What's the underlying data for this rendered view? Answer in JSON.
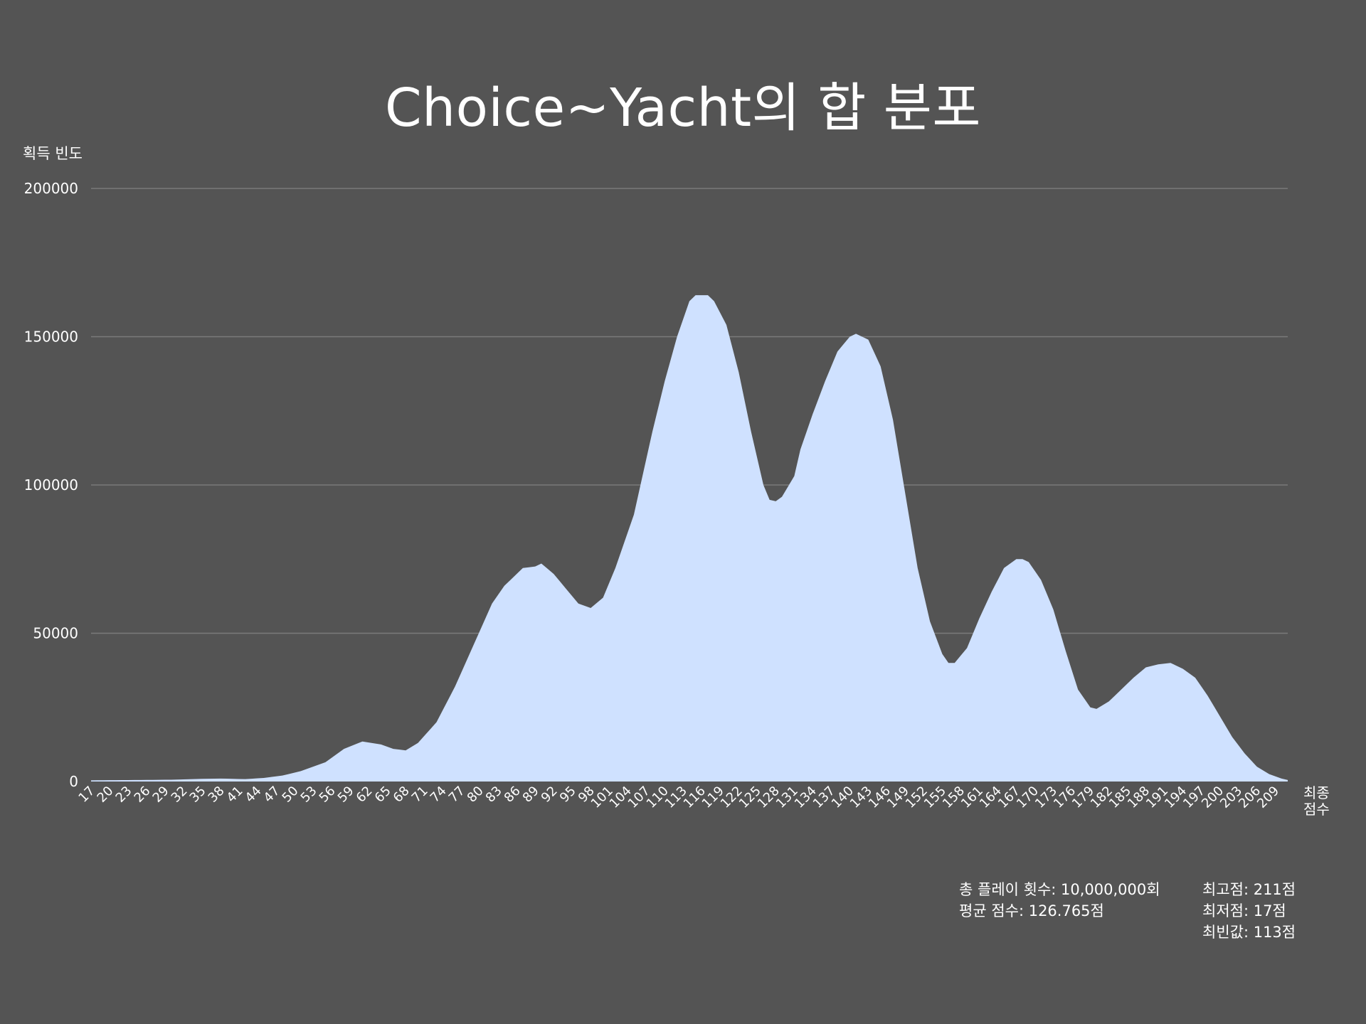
{
  "chart_data": {
    "type": "area",
    "title": "Choice~Yacht의 합 분포",
    "ylabel": "획득 빈도",
    "xlabel": "최종\n점수",
    "ylim": [
      0,
      200000
    ],
    "yticks": [
      0,
      50000,
      100000,
      150000,
      200000
    ],
    "grid": true,
    "fill_color": "#cfe1ff",
    "background_color": "#545454",
    "grid_color": "#7a7a7a",
    "x_start": 17,
    "x_end": 211,
    "tick_every": 3,
    "anchor_points": [
      [
        17,
        400
      ],
      [
        30,
        600
      ],
      [
        35,
        900
      ],
      [
        38,
        1000
      ],
      [
        42,
        800
      ],
      [
        45,
        1200
      ],
      [
        48,
        2000
      ],
      [
        51,
        3500
      ],
      [
        55,
        6500
      ],
      [
        58,
        11000
      ],
      [
        61,
        13500
      ],
      [
        64,
        12500
      ],
      [
        66,
        11000
      ],
      [
        68,
        10500
      ],
      [
        70,
        13000
      ],
      [
        73,
        20000
      ],
      [
        76,
        32000
      ],
      [
        79,
        46000
      ],
      [
        82,
        60000
      ],
      [
        84,
        66000
      ],
      [
        87,
        72000
      ],
      [
        89,
        72500
      ],
      [
        90,
        73500
      ],
      [
        92,
        70000
      ],
      [
        94,
        65000
      ],
      [
        96,
        60000
      ],
      [
        98,
        58500
      ],
      [
        100,
        62000
      ],
      [
        102,
        72000
      ],
      [
        105,
        90000
      ],
      [
        108,
        118000
      ],
      [
        110,
        135000
      ],
      [
        112,
        150000
      ],
      [
        114,
        162000
      ],
      [
        115,
        164000
      ],
      [
        117,
        164000
      ],
      [
        118,
        162000
      ],
      [
        120,
        154000
      ],
      [
        122,
        138000
      ],
      [
        124,
        118000
      ],
      [
        126,
        100000
      ],
      [
        127,
        95000
      ],
      [
        128,
        94500
      ],
      [
        129,
        96000
      ],
      [
        131,
        103000
      ],
      [
        132,
        112000
      ],
      [
        134,
        124000
      ],
      [
        136,
        135000
      ],
      [
        138,
        145000
      ],
      [
        140,
        150000
      ],
      [
        141,
        151000
      ],
      [
        143,
        149000
      ],
      [
        145,
        140000
      ],
      [
        147,
        122000
      ],
      [
        149,
        97000
      ],
      [
        151,
        72000
      ],
      [
        153,
        54000
      ],
      [
        155,
        43000
      ],
      [
        156,
        40000
      ],
      [
        157,
        40000
      ],
      [
        159,
        45000
      ],
      [
        161,
        55000
      ],
      [
        163,
        64000
      ],
      [
        165,
        72000
      ],
      [
        167,
        75000
      ],
      [
        168,
        75000
      ],
      [
        169,
        74000
      ],
      [
        171,
        68000
      ],
      [
        173,
        58000
      ],
      [
        175,
        44000
      ],
      [
        177,
        31000
      ],
      [
        179,
        25000
      ],
      [
        180,
        24500
      ],
      [
        182,
        27000
      ],
      [
        184,
        31000
      ],
      [
        186,
        35000
      ],
      [
        188,
        38500
      ],
      [
        190,
        39500
      ],
      [
        192,
        40000
      ],
      [
        194,
        38000
      ],
      [
        196,
        35000
      ],
      [
        198,
        29000
      ],
      [
        200,
        22000
      ],
      [
        202,
        15000
      ],
      [
        204,
        9500
      ],
      [
        206,
        5000
      ],
      [
        208,
        2500
      ],
      [
        210,
        1000
      ],
      [
        211,
        500
      ]
    ]
  },
  "stats": {
    "total_plays": "총 플레이 횟수: 10,000,000회",
    "mean_score": "평균 점수:  126.765점",
    "max_score": "최고점: 211점",
    "min_score": "최저점: 17점",
    "mode_score": "최빈값: 113점"
  }
}
